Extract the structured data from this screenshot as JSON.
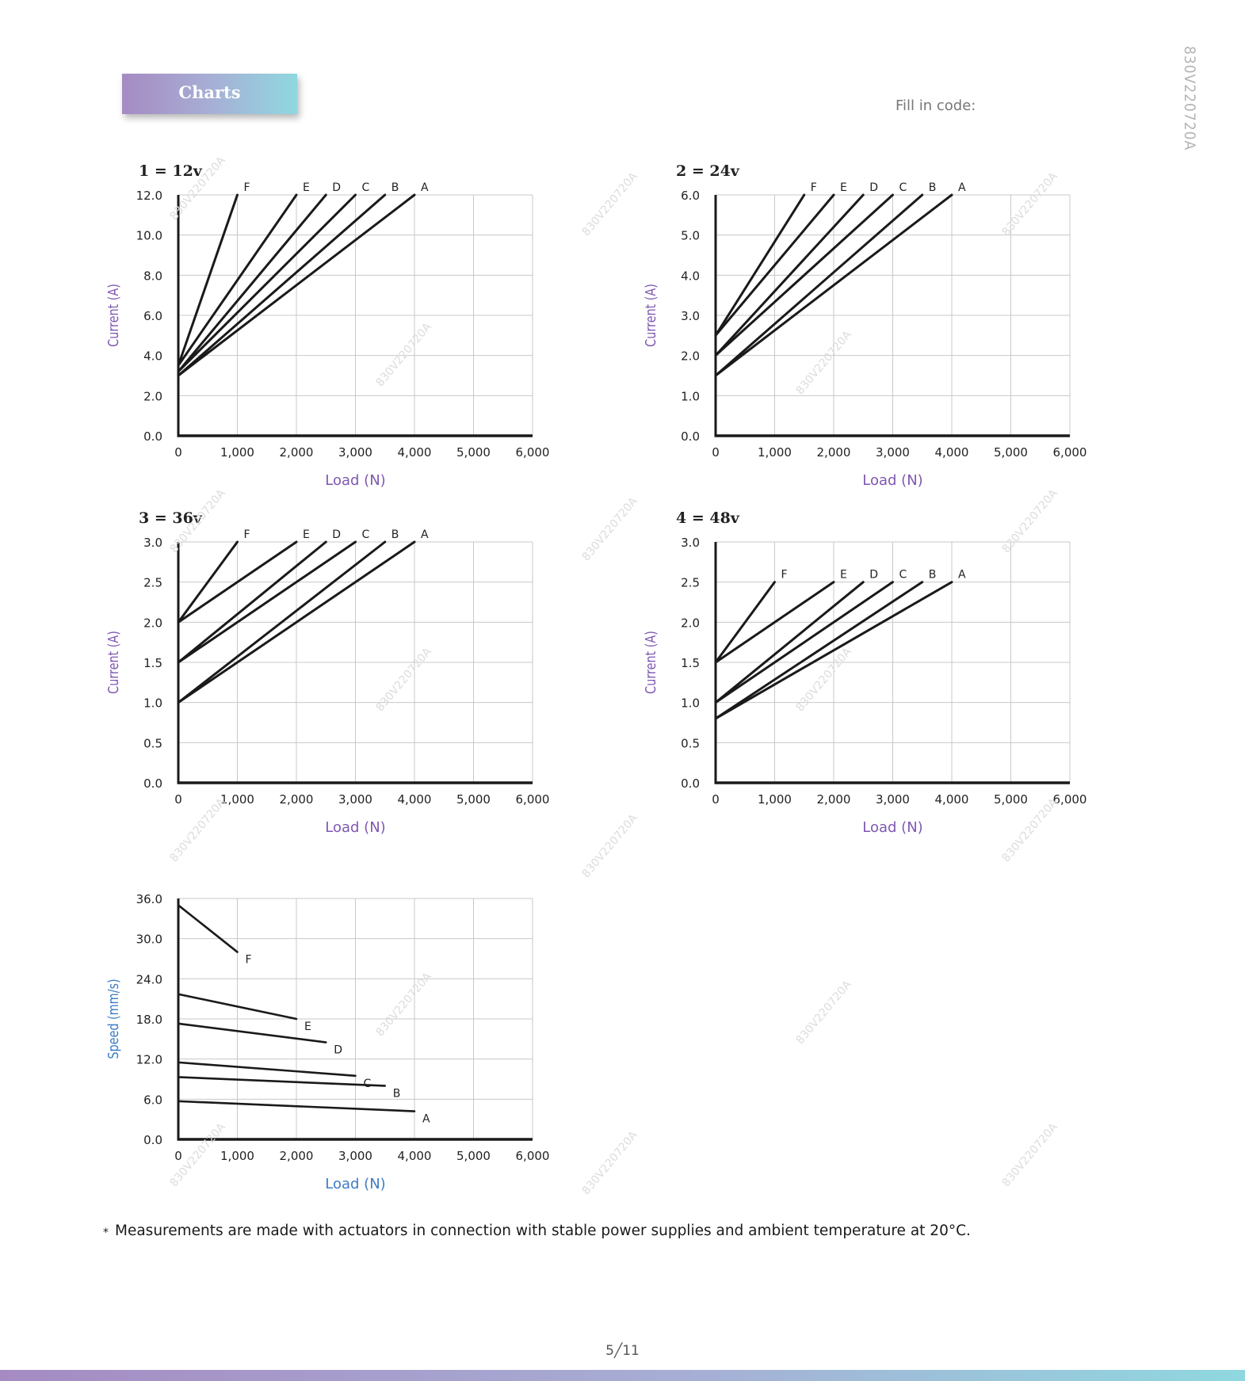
{
  "header": {
    "tab_label": "Charts",
    "fill_label": "Fill in code:",
    "doc_code": "830V220720A"
  },
  "watermark": "830V220720A",
  "colors": {
    "current_axis_label": "#7f58b0",
    "speed_axis_label": "#3e7cc4",
    "load_axis_label": "#7f58b0",
    "line": "#1a1a1a"
  },
  "chart_data": [
    {
      "type": "line",
      "title": "1 = 12v",
      "xlabel": "Load (N)",
      "ylabel": "Current (A)",
      "xlim": [
        0,
        6000
      ],
      "ylim": [
        0,
        12
      ],
      "xticks": [
        "0",
        "1,000",
        "2,000",
        "3,000",
        "4,000",
        "5,000",
        "6,000"
      ],
      "yticks": [
        "0.0",
        "2.0",
        "4.0",
        "6.0",
        "8.0",
        "10.0",
        "12.0"
      ],
      "yticks_values": [
        0,
        2,
        4,
        6,
        8,
        10,
        12
      ],
      "grid": true,
      "series": [
        {
          "name": "F",
          "x": [
            0,
            1000
          ],
          "y": [
            3.5,
            12
          ]
        },
        {
          "name": "E",
          "x": [
            0,
            2000
          ],
          "y": [
            3.5,
            12
          ]
        },
        {
          "name": "D",
          "x": [
            0,
            2500
          ],
          "y": [
            3.2,
            12
          ]
        },
        {
          "name": "C",
          "x": [
            0,
            3000
          ],
          "y": [
            3.2,
            12
          ]
        },
        {
          "name": "B",
          "x": [
            0,
            3500
          ],
          "y": [
            3,
            12
          ]
        },
        {
          "name": "A",
          "x": [
            0,
            4000
          ],
          "y": [
            3,
            12
          ]
        }
      ]
    },
    {
      "type": "line",
      "title": "2 = 24v",
      "xlabel": "Load (N)",
      "ylabel": "Current (A)",
      "xlim": [
        0,
        6000
      ],
      "ylim": [
        0,
        6
      ],
      "xticks": [
        "0",
        "1,000",
        "2,000",
        "3,000",
        "4,000",
        "5,000",
        "6,000"
      ],
      "yticks": [
        "0.0",
        "1.0",
        "2.0",
        "3.0",
        "4.0",
        "5.0",
        "6.0"
      ],
      "yticks_values": [
        0,
        1,
        2,
        3,
        4,
        5,
        6
      ],
      "grid": true,
      "series": [
        {
          "name": "F",
          "x": [
            0,
            1500
          ],
          "y": [
            2.5,
            6
          ]
        },
        {
          "name": "E",
          "x": [
            0,
            2000
          ],
          "y": [
            2.5,
            6
          ]
        },
        {
          "name": "D",
          "x": [
            0,
            2500
          ],
          "y": [
            2,
            6
          ]
        },
        {
          "name": "C",
          "x": [
            0,
            3000
          ],
          "y": [
            2,
            6
          ]
        },
        {
          "name": "B",
          "x": [
            0,
            3500
          ],
          "y": [
            1.5,
            6
          ]
        },
        {
          "name": "A",
          "x": [
            0,
            4000
          ],
          "y": [
            1.5,
            6
          ]
        }
      ]
    },
    {
      "type": "line",
      "title": "3 = 36v",
      "xlabel": "Load (N)",
      "ylabel": "Current (A)",
      "xlim": [
        0,
        6000
      ],
      "ylim": [
        0,
        3
      ],
      "xticks": [
        "0",
        "1,000",
        "2,000",
        "3,000",
        "4,000",
        "5,000",
        "6,000"
      ],
      "yticks": [
        "0.0",
        "0.5",
        "1.0",
        "1.5",
        "2.0",
        "2.5",
        "3.0"
      ],
      "yticks_values": [
        0,
        0.5,
        1,
        1.5,
        2,
        2.5,
        3
      ],
      "grid": true,
      "series": [
        {
          "name": "F",
          "x": [
            0,
            1000
          ],
          "y": [
            2,
            3
          ]
        },
        {
          "name": "E",
          "x": [
            0,
            2000
          ],
          "y": [
            2,
            3
          ]
        },
        {
          "name": "D",
          "x": [
            0,
            2500
          ],
          "y": [
            1.5,
            3
          ]
        },
        {
          "name": "C",
          "x": [
            0,
            3000
          ],
          "y": [
            1.5,
            3
          ]
        },
        {
          "name": "B",
          "x": [
            0,
            3500
          ],
          "y": [
            1,
            3
          ]
        },
        {
          "name": "A",
          "x": [
            0,
            4000
          ],
          "y": [
            1,
            3
          ]
        }
      ]
    },
    {
      "type": "line",
      "title": "4 = 48v",
      "xlabel": "Load (N)",
      "ylabel": "Current (A)",
      "xlim": [
        0,
        6000
      ],
      "ylim": [
        0,
        3
      ],
      "xticks": [
        "0",
        "1,000",
        "2,000",
        "3,000",
        "4,000",
        "5,000",
        "6,000"
      ],
      "yticks": [
        "0.0",
        "0.5",
        "1.0",
        "1.5",
        "2.0",
        "2.5",
        "3.0"
      ],
      "yticks_values": [
        0,
        0.5,
        1,
        1.5,
        2,
        2.5,
        3
      ],
      "grid": true,
      "series": [
        {
          "name": "F",
          "x": [
            0,
            1000
          ],
          "y": [
            1.5,
            2.5
          ]
        },
        {
          "name": "E",
          "x": [
            0,
            2000
          ],
          "y": [
            1.5,
            2.5
          ]
        },
        {
          "name": "D",
          "x": [
            0,
            2500
          ],
          "y": [
            1,
            2.5
          ]
        },
        {
          "name": "C",
          "x": [
            0,
            3000
          ],
          "y": [
            1,
            2.5
          ]
        },
        {
          "name": "B",
          "x": [
            0,
            3500
          ],
          "y": [
            0.8,
            2.5
          ]
        },
        {
          "name": "A",
          "x": [
            0,
            4000
          ],
          "y": [
            0.8,
            2.5
          ]
        }
      ]
    },
    {
      "type": "line",
      "title": "",
      "xlabel": "Load (N)",
      "ylabel": "Speed (mm/s)",
      "xlim": [
        0,
        6000
      ],
      "ylim": [
        0,
        36
      ],
      "xticks": [
        "0",
        "1,000",
        "2,000",
        "3,000",
        "4,000",
        "5,000",
        "6,000"
      ],
      "yticks": [
        "0.0",
        "6.0",
        "12.0",
        "18.0",
        "24.0",
        "30.0",
        "36.0"
      ],
      "yticks_values": [
        0,
        6,
        12,
        18,
        24,
        30,
        36
      ],
      "grid": true,
      "series": [
        {
          "name": "F",
          "x": [
            0,
            1000
          ],
          "y": [
            35,
            28
          ]
        },
        {
          "name": "E",
          "x": [
            0,
            2000
          ],
          "y": [
            21.7,
            18
          ]
        },
        {
          "name": "D",
          "x": [
            0,
            2500
          ],
          "y": [
            17.3,
            14.5
          ]
        },
        {
          "name": "C",
          "x": [
            0,
            3000
          ],
          "y": [
            11.5,
            9.5
          ]
        },
        {
          "name": "B",
          "x": [
            0,
            3500
          ],
          "y": [
            9.3,
            8
          ]
        },
        {
          "name": "A",
          "x": [
            0,
            4000
          ],
          "y": [
            5.7,
            4.2
          ]
        }
      ]
    }
  ],
  "footnote": {
    "marker": "*",
    "text": "Measurements are made with actuators in connection with stable power supplies and ambient temperature at 20°C."
  },
  "page_number": "5╱11"
}
